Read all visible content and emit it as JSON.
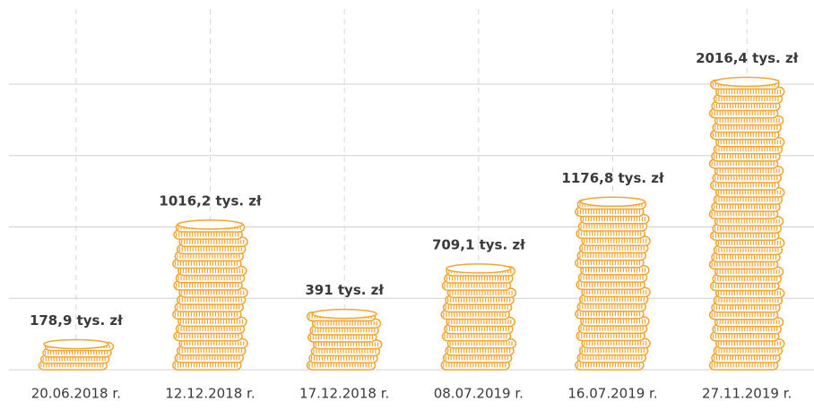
{
  "chart_data": {
    "type": "bar",
    "categories": [
      "20.06.2018 r.",
      "12.12.2018 r.",
      "17.12.2018 r.",
      "08.07.2019 r.",
      "16.07.2019 r.",
      "27.11.2019 r."
    ],
    "values": [
      178.9,
      1016.2,
      391,
      709.1,
      1176.8,
      2016.4
    ],
    "value_labels": [
      "178,9 tys. zł",
      "1016,2 tys. zł",
      "391 tys. zł",
      "709,1 tys. zł",
      "1176,8 tys. zł",
      "2016,4 tys. zł"
    ],
    "color": "#f2a531",
    "ylim": [
      0,
      2000
    ],
    "grid": true
  }
}
